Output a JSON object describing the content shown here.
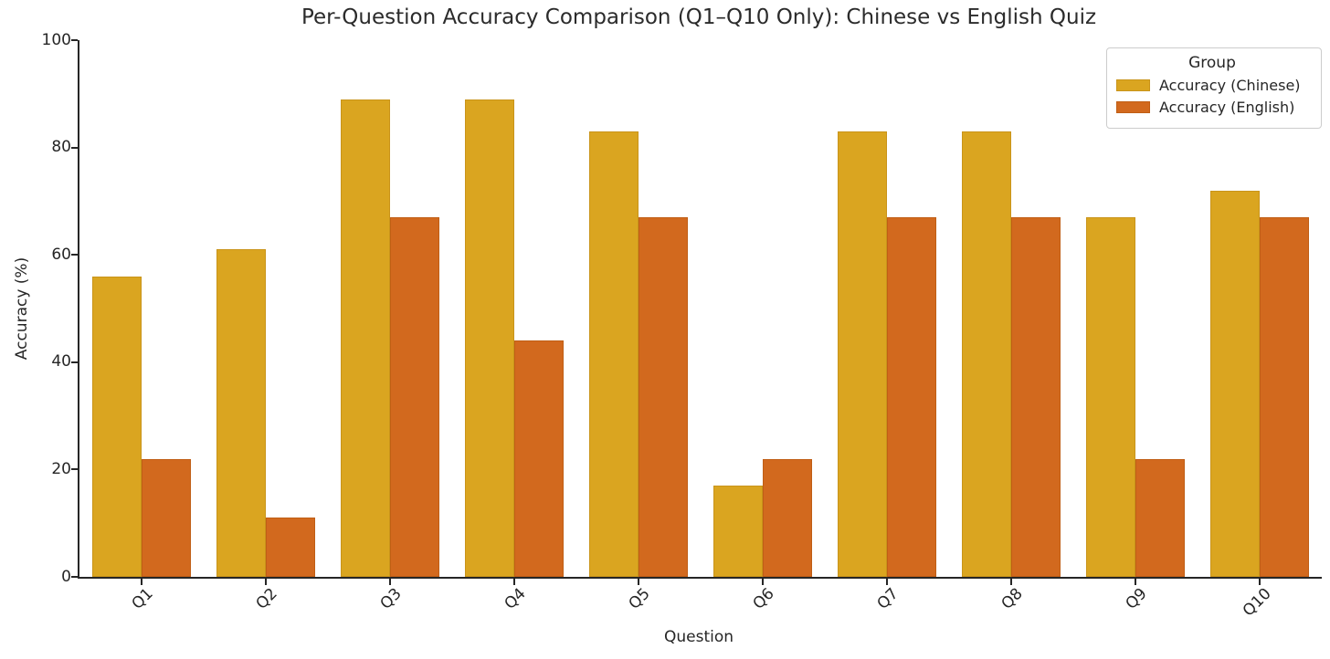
{
  "chart_data": {
    "type": "bar",
    "title": "Per-Question Accuracy Comparison (Q1–Q10 Only): Chinese vs English Quiz",
    "xlabel": "Question",
    "ylabel": "Accuracy (%)",
    "categories": [
      "Q1",
      "Q2",
      "Q3",
      "Q4",
      "Q5",
      "Q6",
      "Q7",
      "Q8",
      "Q9",
      "Q10"
    ],
    "series": [
      {
        "name": "Accuracy (Chinese)",
        "color": "#daa520",
        "edge_color": "#c9941a",
        "values": [
          56,
          61,
          89,
          89,
          83,
          17,
          83,
          83,
          67,
          72
        ]
      },
      {
        "name": "Accuracy (English)",
        "color": "#d2691e",
        "edge_color": "#c05e15",
        "values": [
          22,
          11,
          67,
          44,
          67,
          22,
          67,
          67,
          22,
          67
        ]
      }
    ],
    "ylim": [
      0,
      100
    ],
    "yticks": [
      0,
      20,
      40,
      60,
      80,
      100
    ],
    "legend_title": "Group",
    "legend_position": "upper right",
    "grid": false,
    "text_color": "#262626",
    "spine_color": "#262626",
    "background_color": "#ffffff"
  }
}
